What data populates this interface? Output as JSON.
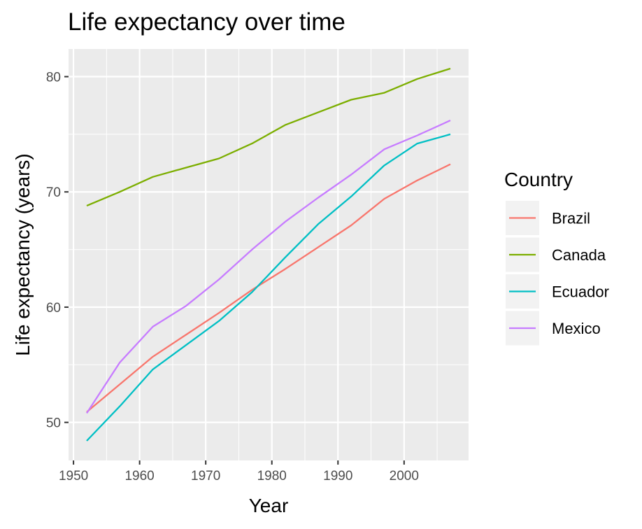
{
  "chart_data": {
    "type": "line",
    "title": "Life expectancy over time",
    "xlabel": "Year",
    "ylabel": "Life expectancy (years)",
    "xlim": [
      1949.25,
      2009.75
    ],
    "ylim": [
      46.7,
      82.4
    ],
    "x_ticks": [
      1950,
      1960,
      1970,
      1980,
      1990,
      2000
    ],
    "y_ticks": [
      50,
      60,
      70,
      80
    ],
    "grid": true,
    "legend": {
      "title": "Country",
      "placement": "right"
    },
    "x": [
      1952,
      1957,
      1962,
      1967,
      1972,
      1977,
      1982,
      1987,
      1992,
      1997,
      2002,
      2007
    ],
    "series": [
      {
        "name": "Brazil",
        "color": "#F8766D",
        "values": [
          50.9,
          53.3,
          55.7,
          57.6,
          59.5,
          61.5,
          63.3,
          65.2,
          67.1,
          69.4,
          71.0,
          72.4
        ]
      },
      {
        "name": "Canada",
        "color": "#7CAE00",
        "values": [
          68.8,
          70.0,
          71.3,
          72.1,
          72.9,
          74.2,
          75.8,
          76.9,
          78.0,
          78.6,
          79.8,
          80.7
        ]
      },
      {
        "name": "Ecuador",
        "color": "#00BFC4",
        "values": [
          48.4,
          51.4,
          54.6,
          56.7,
          58.8,
          61.3,
          64.3,
          67.2,
          69.6,
          72.3,
          74.2,
          75.0
        ]
      },
      {
        "name": "Mexico",
        "color": "#C77CFF",
        "values": [
          50.8,
          55.2,
          58.3,
          60.1,
          62.4,
          65.0,
          67.4,
          69.5,
          71.5,
          73.7,
          74.9,
          76.2
        ]
      }
    ]
  }
}
